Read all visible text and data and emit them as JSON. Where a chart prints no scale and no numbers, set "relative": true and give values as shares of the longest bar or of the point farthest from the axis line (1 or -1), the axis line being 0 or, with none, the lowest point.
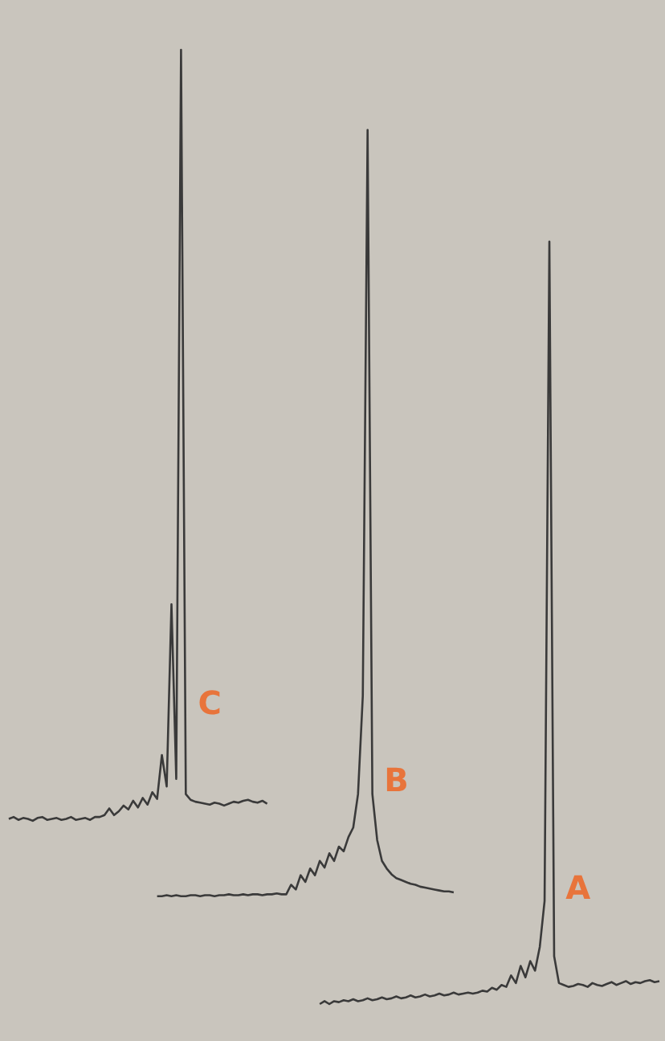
{
  "chart_data": {
    "type": "line",
    "relative": true,
    "categories": [
      null,
      null,
      null,
      null,
      null,
      null,
      null,
      null,
      null,
      null,
      null,
      null,
      null,
      null,
      null,
      null,
      null,
      null,
      null,
      null,
      null,
      null,
      null,
      null,
      null,
      null,
      null,
      null,
      null,
      null,
      null,
      null,
      null,
      null,
      null,
      null,
      null,
      null,
      null,
      null,
      null,
      null,
      null,
      null,
      null,
      null,
      null,
      null,
      null,
      null,
      null,
      null,
      null,
      null,
      null,
      null,
      null,
      null,
      null,
      null,
      null,
      null,
      null,
      null,
      null,
      null,
      null,
      null,
      null,
      null,
      null,
      null,
      null,
      null,
      null,
      null,
      null,
      null,
      null,
      null,
      null,
      null,
      null,
      null,
      null,
      null,
      null,
      null,
      null,
      null,
      null,
      null,
      null,
      null,
      null,
      null,
      null,
      null,
      null,
      null,
      null,
      null,
      null,
      null,
      null,
      null,
      null,
      null,
      null,
      null,
      null,
      null,
      null,
      null,
      null,
      null,
      null,
      null,
      null,
      null,
      null,
      null,
      null,
      null,
      null,
      null,
      null,
      null,
      null,
      null,
      null,
      null,
      null,
      null,
      null,
      null,
      null
    ],
    "series": [
      {
        "name": "C",
        "color": "#3a3a3a",
        "values": [
          0.194,
          0.196,
          0.193,
          0.195,
          0.194,
          0.192,
          0.195,
          0.196,
          0.193,
          0.194,
          0.195,
          0.193,
          0.194,
          0.196,
          0.193,
          0.194,
          0.195,
          0.193,
          0.196,
          0.196,
          0.198,
          0.205,
          0.198,
          0.202,
          0.208,
          0.204,
          0.213,
          0.206,
          0.216,
          0.209,
          0.222,
          0.215,
          0.261,
          0.228,
          0.419,
          0.236,
          1,
          0.22,
          0.214,
          0.212,
          0.211,
          0.21,
          0.209,
          0.211,
          0.21,
          0.208,
          0.21,
          0.212,
          0.211,
          0.213,
          0.214,
          0.212,
          0.211,
          0.213,
          0.21,
          null,
          null,
          null,
          null,
          null,
          null,
          null,
          null,
          null,
          null,
          null,
          null,
          null,
          null,
          null,
          null,
          null,
          null,
          null,
          null,
          null,
          null,
          null,
          null,
          null,
          null,
          null,
          null,
          null,
          null,
          null,
          null,
          null,
          null,
          null,
          null,
          null,
          null,
          null,
          null,
          null,
          null,
          null,
          null,
          null,
          null,
          null,
          null,
          null,
          null,
          null,
          null,
          null,
          null,
          null,
          null,
          null,
          null,
          null,
          null,
          null,
          null,
          null,
          null,
          null,
          null,
          null,
          null,
          null,
          null,
          null,
          null,
          null,
          null,
          null,
          null,
          null,
          null,
          null,
          null,
          null,
          null
        ]
      },
      {
        "name": "B",
        "color": "#3a3a3a",
        "values": [
          null,
          null,
          null,
          null,
          null,
          null,
          null,
          null,
          null,
          null,
          null,
          null,
          null,
          null,
          null,
          null,
          null,
          null,
          null,
          null,
          null,
          null,
          null,
          null,
          null,
          null,
          null,
          null,
          null,
          null,
          null,
          0.113,
          0.113,
          0.114,
          0.113,
          0.114,
          0.113,
          0.113,
          0.114,
          0.114,
          0.113,
          0.114,
          0.114,
          0.113,
          0.114,
          0.114,
          0.115,
          0.114,
          0.114,
          0.115,
          0.114,
          0.115,
          0.115,
          0.114,
          0.115,
          0.115,
          0.116,
          0.115,
          0.115,
          0.125,
          0.12,
          0.135,
          0.128,
          0.142,
          0.135,
          0.15,
          0.143,
          0.158,
          0.15,
          0.165,
          0.16,
          0.175,
          0.185,
          0.22,
          0.323,
          0.916,
          0.22,
          0.172,
          0.15,
          0.142,
          0.136,
          0.132,
          0.13,
          0.128,
          0.126,
          0.125,
          0.123,
          0.122,
          0.121,
          0.12,
          0.119,
          0.118,
          0.118,
          0.117,
          null,
          null,
          null,
          null,
          null,
          null,
          null,
          null,
          null,
          null,
          null,
          null,
          null,
          null,
          null,
          null,
          null,
          null,
          null,
          null,
          null,
          null,
          null,
          null,
          null,
          null,
          null,
          null,
          null,
          null,
          null,
          null,
          null,
          null,
          null,
          null,
          null,
          null,
          null,
          null,
          null,
          null,
          null
        ]
      },
      {
        "name": "A",
        "color": "#3a3a3a",
        "values": [
          null,
          null,
          null,
          null,
          null,
          null,
          null,
          null,
          null,
          null,
          null,
          null,
          null,
          null,
          null,
          null,
          null,
          null,
          null,
          null,
          null,
          null,
          null,
          null,
          null,
          null,
          null,
          null,
          null,
          null,
          null,
          null,
          null,
          null,
          null,
          null,
          null,
          null,
          null,
          null,
          null,
          null,
          null,
          null,
          null,
          null,
          null,
          null,
          null,
          null,
          null,
          null,
          null,
          null,
          null,
          null,
          null,
          null,
          null,
          null,
          null,
          null,
          null,
          null,
          null,
          0.0,
          0.003,
          0.0,
          0.003,
          0.002,
          0.004,
          0.003,
          0.005,
          0.003,
          0.004,
          0.006,
          0.004,
          0.005,
          0.007,
          0.005,
          0.006,
          0.008,
          0.006,
          0.007,
          0.009,
          0.007,
          0.008,
          0.01,
          0.008,
          0.009,
          0.011,
          0.009,
          0.01,
          0.012,
          0.01,
          0.011,
          0.012,
          0.011,
          0.012,
          0.014,
          0.013,
          0.017,
          0.015,
          0.02,
          0.018,
          0.03,
          0.022,
          0.04,
          0.028,
          0.045,
          0.035,
          0.06,
          0.108,
          0.799,
          0.05,
          0.022,
          0.02,
          0.018,
          0.019,
          0.021,
          0.02,
          0.018,
          0.022,
          0.02,
          0.019,
          0.021,
          0.023,
          0.02,
          0.022,
          0.024,
          0.021,
          0.023,
          0.022,
          0.024,
          0.025,
          0.023,
          0.024
        ]
      }
    ]
  }
}
